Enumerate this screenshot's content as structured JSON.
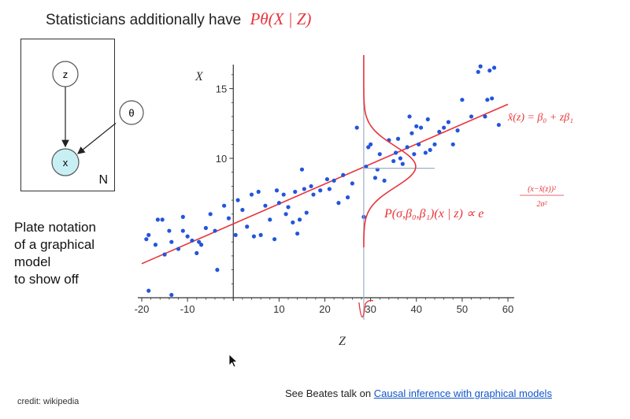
{
  "slide": {
    "title_text": "Statisticians additionally have",
    "title_math": "Pθ(X | Z)",
    "caption_lines": [
      "Plate notation",
      "of a graphical",
      "model",
      "to show off"
    ],
    "credit": "credit: wikipedia",
    "footer_text": "See Beates talk on",
    "footer_link": "Causal inference with graphical models"
  },
  "plate": {
    "nodes": [
      "z",
      "θ",
      "x"
    ],
    "plate_letter": "N",
    "node_fill": "#c8f0f4"
  },
  "chart_data": {
    "type": "scatter",
    "xlabel": "Z",
    "ylabel": "X",
    "xlim": [
      -20,
      60
    ],
    "ylim": [
      0,
      16.5
    ],
    "xticks": [
      -20,
      -10,
      10,
      20,
      30,
      40,
      50,
      60
    ],
    "yticks": [
      10,
      15
    ],
    "point_color": "#2255dd",
    "line_color": "#e8333a",
    "regression": {
      "intercept": 5.3,
      "slope": 0.143
    },
    "density_at_z": 28.5,
    "density_peak_x": 9.4,
    "line_annotation": "x̂(z) = β₀ + zβ₁",
    "density_annotation": "P(σ,β₀,β₁)(x | z) ∝ e",
    "density_exponent_num": "(x−x̂(z))²",
    "density_exponent_den": "2σ²",
    "points": [
      [
        -19,
        4.2
      ],
      [
        -18.5,
        4.5
      ],
      [
        -17,
        3.8
      ],
      [
        -16.5,
        5.6
      ],
      [
        -15.5,
        5.6
      ],
      [
        -15,
        3.1
      ],
      [
        -14,
        4.8
      ],
      [
        -13.5,
        4.0
      ],
      [
        -12,
        3.5
      ],
      [
        -11,
        5.8
      ],
      [
        -11,
        4.8
      ],
      [
        -10,
        4.4
      ],
      [
        -9,
        4.1
      ],
      [
        -8,
        3.2
      ],
      [
        -7.5,
        4.0
      ],
      [
        -7,
        3.8
      ],
      [
        -6,
        5.0
      ],
      [
        -5,
        6.0
      ],
      [
        -4,
        4.8
      ],
      [
        -3.5,
        2.0
      ],
      [
        -2,
        6.6
      ],
      [
        -1,
        5.7
      ],
      [
        0.5,
        4.5
      ],
      [
        1,
        7.0
      ],
      [
        2,
        6.3
      ],
      [
        3,
        5.1
      ],
      [
        4,
        7.4
      ],
      [
        4.5,
        4.4
      ],
      [
        5.5,
        7.6
      ],
      [
        6,
        4.5
      ],
      [
        7,
        6.6
      ],
      [
        8,
        5.6
      ],
      [
        9,
        4.2
      ],
      [
        9.5,
        7.7
      ],
      [
        10,
        6.8
      ],
      [
        11,
        7.4
      ],
      [
        11.5,
        6.0
      ],
      [
        12,
        6.5
      ],
      [
        13,
        5.4
      ],
      [
        13.5,
        7.6
      ],
      [
        14,
        4.6
      ],
      [
        14.5,
        5.6
      ],
      [
        15,
        9.2
      ],
      [
        15.5,
        7.8
      ],
      [
        16,
        6.1
      ],
      [
        17,
        8.0
      ],
      [
        17.5,
        7.4
      ],
      [
        19,
        7.7
      ],
      [
        20.5,
        8.5
      ],
      [
        21,
        7.8
      ],
      [
        22,
        8.4
      ],
      [
        23,
        6.8
      ],
      [
        24,
        8.8
      ],
      [
        25,
        7.2
      ],
      [
        26,
        8.2
      ],
      [
        27,
        12.2
      ],
      [
        28.5,
        5.8
      ],
      [
        29,
        9.4
      ],
      [
        29.5,
        10.8
      ],
      [
        30,
        11.0
      ],
      [
        31,
        8.6
      ],
      [
        31.5,
        9.2
      ],
      [
        32,
        10.3
      ],
      [
        33,
        8.4
      ],
      [
        34,
        11.3
      ],
      [
        35,
        9.8
      ],
      [
        35.5,
        10.4
      ],
      [
        36,
        11.4
      ],
      [
        36.5,
        10.0
      ],
      [
        37,
        9.6
      ],
      [
        38,
        10.8
      ],
      [
        38.5,
        13.0
      ],
      [
        39,
        11.8
      ],
      [
        39.5,
        10.3
      ],
      [
        40,
        12.3
      ],
      [
        40.5,
        11.0
      ],
      [
        41,
        12.2
      ],
      [
        42,
        10.4
      ],
      [
        42.5,
        12.8
      ],
      [
        43,
        10.6
      ],
      [
        44,
        11.0
      ],
      [
        45,
        11.9
      ],
      [
        46,
        12.2
      ],
      [
        47,
        12.6
      ],
      [
        48,
        11.0
      ],
      [
        49,
        12.0
      ],
      [
        50,
        14.2
      ],
      [
        52,
        13.0
      ],
      [
        53.5,
        16.2
      ],
      [
        54,
        16.6
      ],
      [
        55,
        13.0
      ],
      [
        55.5,
        14.2
      ],
      [
        56,
        16.3
      ],
      [
        56.5,
        14.3
      ],
      [
        57,
        16.5
      ],
      [
        58,
        12.4
      ],
      [
        -18.5,
        0.5
      ],
      [
        -13.5,
        0.2
      ]
    ]
  }
}
